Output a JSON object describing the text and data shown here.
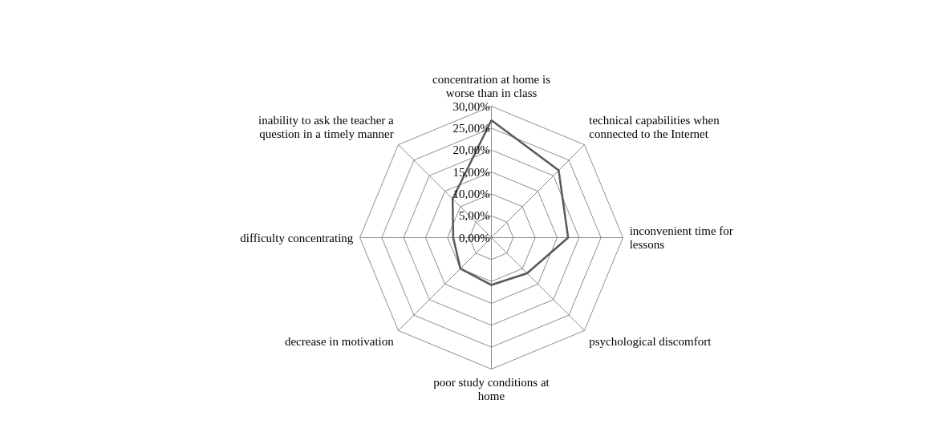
{
  "chart_data": {
    "type": "radar",
    "categories": [
      "concentration at home is worse than in class",
      "technical capabilities when connected to the Internet",
      "inconvenient time for lessons",
      "psychological discomfort",
      "poor study conditions at home",
      "decrease in motivation",
      "difficulty concentrating",
      "inability to ask the teacher a question in a timely manner"
    ],
    "series": [
      {
        "color": "#595959",
        "values": [
          26.8,
          21.7,
          17.5,
          11.5,
          10.8,
          10.0,
          8.7,
          12.5
        ]
      }
    ],
    "ylim": [
      0,
      30
    ],
    "yticks": [
      {
        "value": 0,
        "label": "0,00%"
      },
      {
        "value": 5,
        "label": "5,00%"
      },
      {
        "value": 10,
        "label": "10,00%"
      },
      {
        "value": 15,
        "label": "15,00%"
      },
      {
        "value": 20,
        "label": "20,00%"
      },
      {
        "value": 25,
        "label": "25,00%"
      },
      {
        "value": 30,
        "label": "30,00%"
      }
    ],
    "grid": true,
    "marker": "none",
    "line_style": "solid"
  }
}
